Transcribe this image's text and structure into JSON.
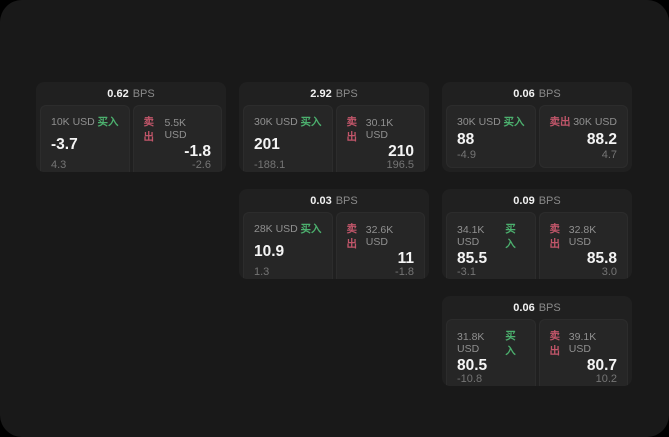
{
  "labels": {
    "bps_suffix": "BPS",
    "buy_tag": "买入",
    "sell_tag": "卖出"
  },
  "colors": {
    "buy_green": "#4cb06e",
    "sell_red": "#c2566a",
    "surface": "#191919",
    "card": "#202020",
    "panel": "#262626"
  },
  "cards": [
    {
      "bps": "0.62",
      "row": 0,
      "col": 0,
      "buy": {
        "amount": "10K USD",
        "value": "-3.7",
        "sub": "4.3"
      },
      "sell": {
        "amount": "5.5K USD",
        "value": "-1.8",
        "sub": "-2.6"
      }
    },
    {
      "bps": "2.92",
      "row": 0,
      "col": 1,
      "buy": {
        "amount": "30K USD",
        "value": "201",
        "sub": "-188.1"
      },
      "sell": {
        "amount": "30.1K USD",
        "value": "210",
        "sub": "196.5"
      }
    },
    {
      "bps": "0.06",
      "row": 0,
      "col": 2,
      "buy": {
        "amount": "30K USD",
        "value": "88",
        "sub": "-4.9"
      },
      "sell": {
        "amount": "30K USD",
        "value": "88.2",
        "sub": "4.7"
      }
    },
    {
      "bps": "0.03",
      "row": 1,
      "col": 1,
      "buy": {
        "amount": "28K USD",
        "value": "10.9",
        "sub": "1.3"
      },
      "sell": {
        "amount": "32.6K USD",
        "value": "11",
        "sub": "-1.8"
      }
    },
    {
      "bps": "0.09",
      "row": 1,
      "col": 2,
      "buy": {
        "amount": "34.1K USD",
        "value": "85.5",
        "sub": "-3.1"
      },
      "sell": {
        "amount": "32.8K USD",
        "value": "85.8",
        "sub": "3.0"
      }
    },
    {
      "bps": "0.06",
      "row": 2,
      "col": 2,
      "buy": {
        "amount": "31.8K USD",
        "value": "80.5",
        "sub": "-10.8"
      },
      "sell": {
        "amount": "39.1K USD",
        "value": "80.7",
        "sub": "10.2"
      }
    }
  ]
}
